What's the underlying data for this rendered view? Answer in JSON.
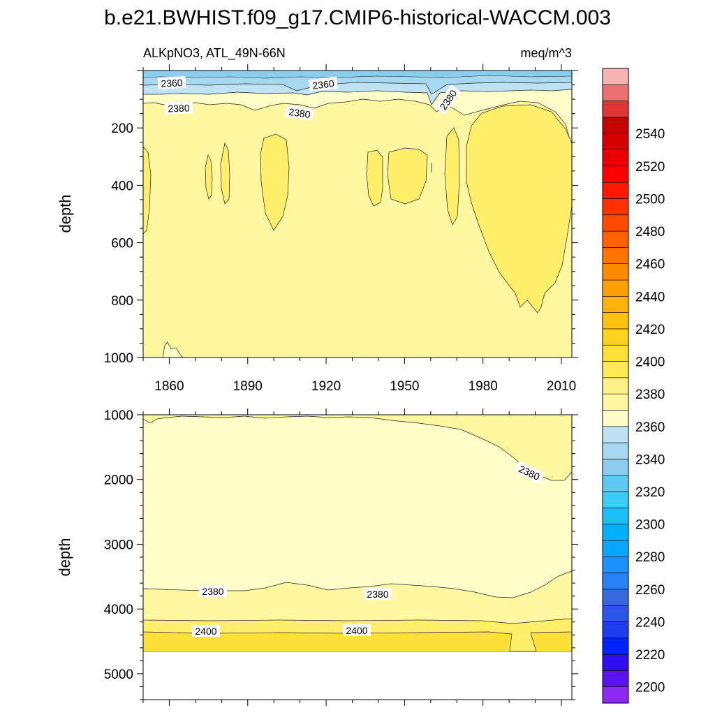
{
  "chart_data": {
    "type": "heatmap",
    "title": "b.e21.BWHIST.f09_g17.CMIP6-historical-WACCM.003",
    "variable": "ALKpNO3, ATL_49N-66N",
    "units": "meq/m^3",
    "colors": {
      "c2380": "#fffdc8",
      "c2390": "#fff8a0",
      "c2400": "#ffef6a",
      "c2410": "#ffe03a",
      "c2370": "#bfe3f4",
      "c2360": "#a6d8f0",
      "c2350": "#8ccced"
    },
    "colorbar": {
      "colors": [
        "#8b29f2",
        "#5b14f0",
        "#2f0ff0",
        "#0022ff",
        "#1f3ef0",
        "#2a55e6",
        "#3868e0",
        "#2880f5",
        "#1d90ff",
        "#0aa5ff",
        "#00b2f5",
        "#1cbff7",
        "#3ecbf7",
        "#60c8f2",
        "#8ccced",
        "#a6d8f0",
        "#bfe3f4",
        "#fffdc8",
        "#fff8a0",
        "#fff18a",
        "#ffe85a",
        "#ffe03a",
        "#ffd21e",
        "#ffc10f",
        "#ffb30a",
        "#ff9f06",
        "#ff8a00",
        "#ff7400",
        "#ff6000",
        "#ff4a00",
        "#ff3000",
        "#ff1800",
        "#ff0000",
        "#ea0000",
        "#d60000",
        "#c80000",
        "#e03535",
        "#ec7070",
        "#f9b2b2"
      ],
      "labels": [
        "2200",
        "2220",
        "2240",
        "2260",
        "2280",
        "2300",
        "2320",
        "2340",
        "2360",
        "2380",
        "2400",
        "2420",
        "2440",
        "2460",
        "2480",
        "2500",
        "2520",
        "2540"
      ]
    },
    "top_panel": {
      "ylabel": "depth",
      "ylim": [
        1000,
        0
      ],
      "xlim": [
        1850,
        2014
      ],
      "xticks": [
        "1860",
        "1890",
        "1920",
        "1950",
        "1980",
        "2010"
      ],
      "yticks": [
        "200",
        "400",
        "600",
        "800",
        "1000"
      ],
      "contour_labels": [
        "2360",
        "2360",
        "2380",
        "2380",
        "2380"
      ]
    },
    "bottom_panel": {
      "ylabel": "depth",
      "ylim": [
        5400,
        1000
      ],
      "yticks": [
        "1000",
        "2000",
        "3000",
        "4000",
        "5000"
      ],
      "data_bottom_depth": 4620,
      "contour_labels": [
        "2380",
        "2380",
        "2380",
        "2400",
        "2400"
      ]
    }
  }
}
